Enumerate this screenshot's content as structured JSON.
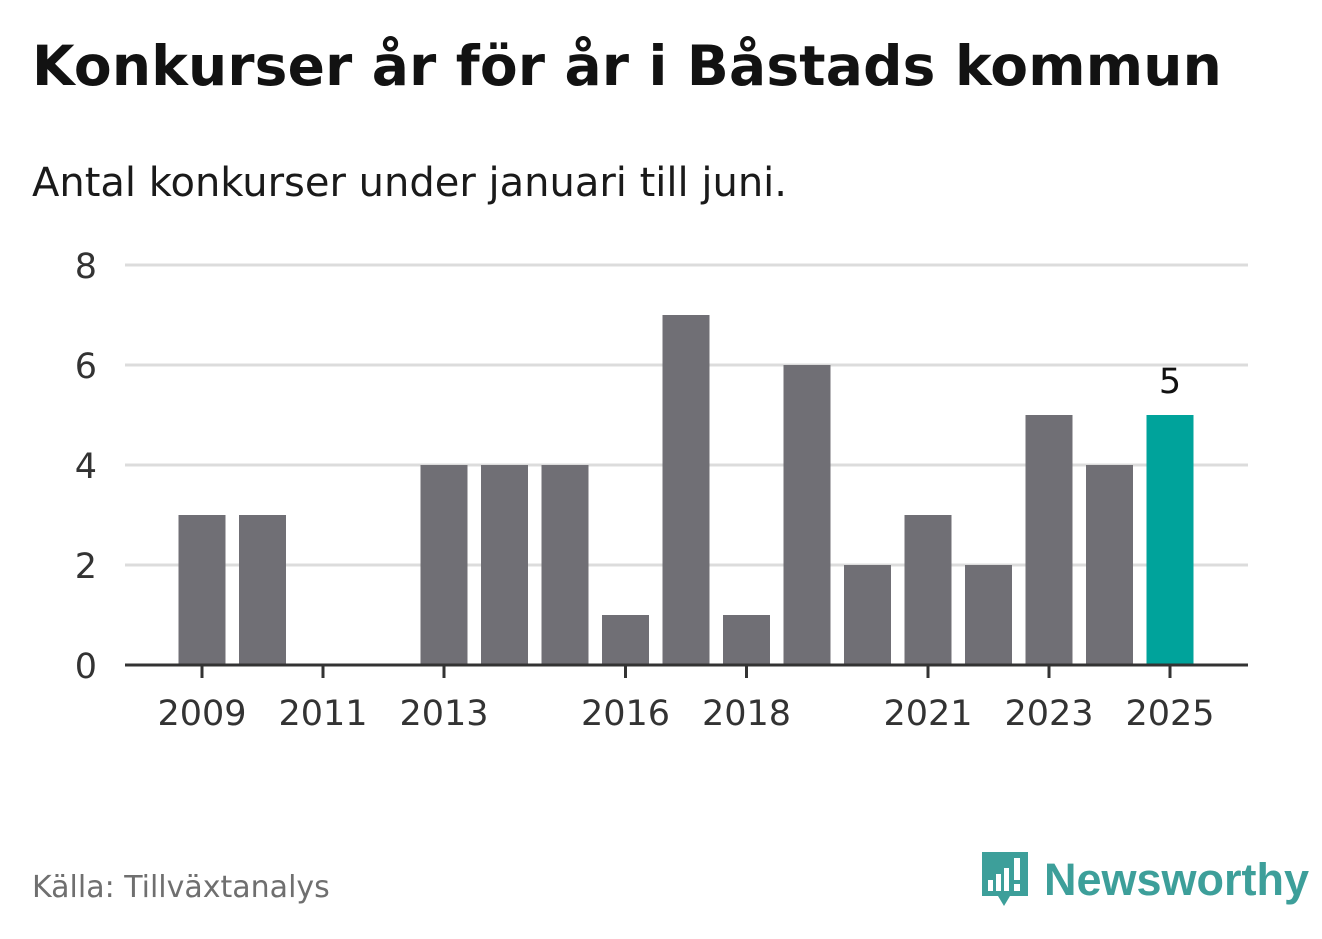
{
  "title": "Konkurser år för år i Båstads kommun",
  "subtitle": "Antal konkurser under januari till juni.",
  "source": "Källa: Tillväxtanalys",
  "brand": {
    "name": "Newsworthy",
    "icon": "newsworthy-logo-icon"
  },
  "colors": {
    "bar": "#706f75",
    "highlight": "#00a39b",
    "grid": "#dcdcdc",
    "axis": "#333333",
    "brand": "#3d9f9a"
  },
  "chart_data": {
    "type": "bar",
    "categories": [
      "2009",
      "2010",
      "2011",
      "2012",
      "2013",
      "2014",
      "2015",
      "2016",
      "2017",
      "2018",
      "2019",
      "2020",
      "2021",
      "2022",
      "2023",
      "2024",
      "2025"
    ],
    "values": [
      3,
      3,
      0,
      0,
      4,
      4,
      4,
      1,
      7,
      1,
      6,
      2,
      3,
      2,
      5,
      4,
      5
    ],
    "x_tick_labels": [
      "2009",
      "2011",
      "2013",
      "2016",
      "2018",
      "2021",
      "2023",
      "2025"
    ],
    "y_ticks": [
      0,
      2,
      4,
      6,
      8
    ],
    "ylim": [
      0,
      8
    ],
    "highlight_category": "2025",
    "data_labels": [
      {
        "category": "2025",
        "value": "5"
      }
    ],
    "grid": true,
    "legend": "none",
    "title": "Konkurser år för år i Båstads kommun",
    "subtitle": "Antal konkurser under januari till juni.",
    "xlabel": "",
    "ylabel": ""
  }
}
